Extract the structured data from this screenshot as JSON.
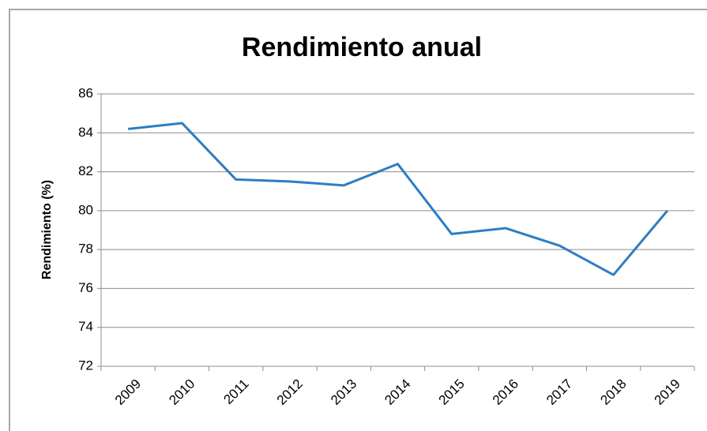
{
  "chart_data": {
    "type": "line",
    "title": "Rendimiento anual",
    "y_label": "Rendimiento (%)",
    "categories": [
      "2009",
      "2010",
      "2011",
      "2012",
      "2013",
      "2014",
      "2015",
      "2016",
      "2017",
      "2018",
      "2019"
    ],
    "values": [
      84.2,
      84.5,
      81.6,
      81.5,
      81.3,
      82.4,
      78.8,
      79.1,
      78.2,
      76.7,
      80.0
    ],
    "color": "#2e7dc2",
    "ylim": [
      72,
      86
    ],
    "yticks": [
      72,
      74,
      76,
      78,
      80,
      82,
      84,
      86
    ],
    "grid": true
  }
}
